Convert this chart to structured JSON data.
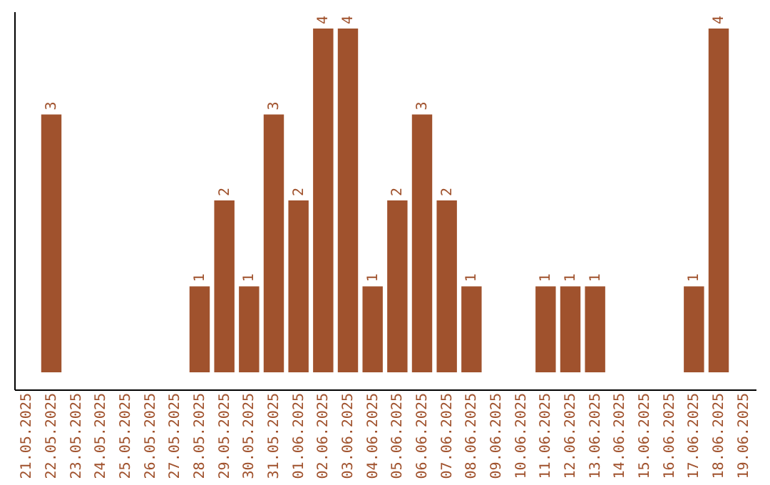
{
  "chart_data": {
    "type": "bar",
    "categories": [
      "21.05.2025",
      "22.05.2025",
      "23.05.2025",
      "24.05.2025",
      "25.05.2025",
      "26.05.2025",
      "27.05.2025",
      "28.05.2025",
      "29.05.2025",
      "30.05.2025",
      "31.05.2025",
      "01.06.2025",
      "02.06.2025",
      "03.06.2025",
      "04.06.2025",
      "05.06.2025",
      "06.06.2025",
      "07.06.2025",
      "08.06.2025",
      "09.06.2025",
      "10.06.2025",
      "11.06.2025",
      "12.06.2025",
      "13.06.2025",
      "14.06.2025",
      "15.06.2025",
      "16.06.2025",
      "17.06.2025",
      "18.06.2025",
      "19.06.2025"
    ],
    "values": [
      0,
      3,
      0,
      0,
      0,
      0,
      0,
      1,
      2,
      1,
      3,
      2,
      4,
      4,
      1,
      2,
      3,
      2,
      1,
      0,
      0,
      1,
      1,
      1,
      0,
      0,
      0,
      1,
      4,
      0
    ],
    "value_labels": [
      null,
      "3",
      null,
      null,
      null,
      null,
      null,
      "1",
      "2",
      "1",
      "3",
      "2",
      "4",
      "4",
      "1",
      "2",
      "3",
      "2",
      "1",
      null,
      null,
      "1",
      "1",
      "1",
      null,
      null,
      null,
      "1",
      "4",
      null
    ],
    "color": "#a0522d",
    "tick_labels": "x",
    "grid": false
  }
}
